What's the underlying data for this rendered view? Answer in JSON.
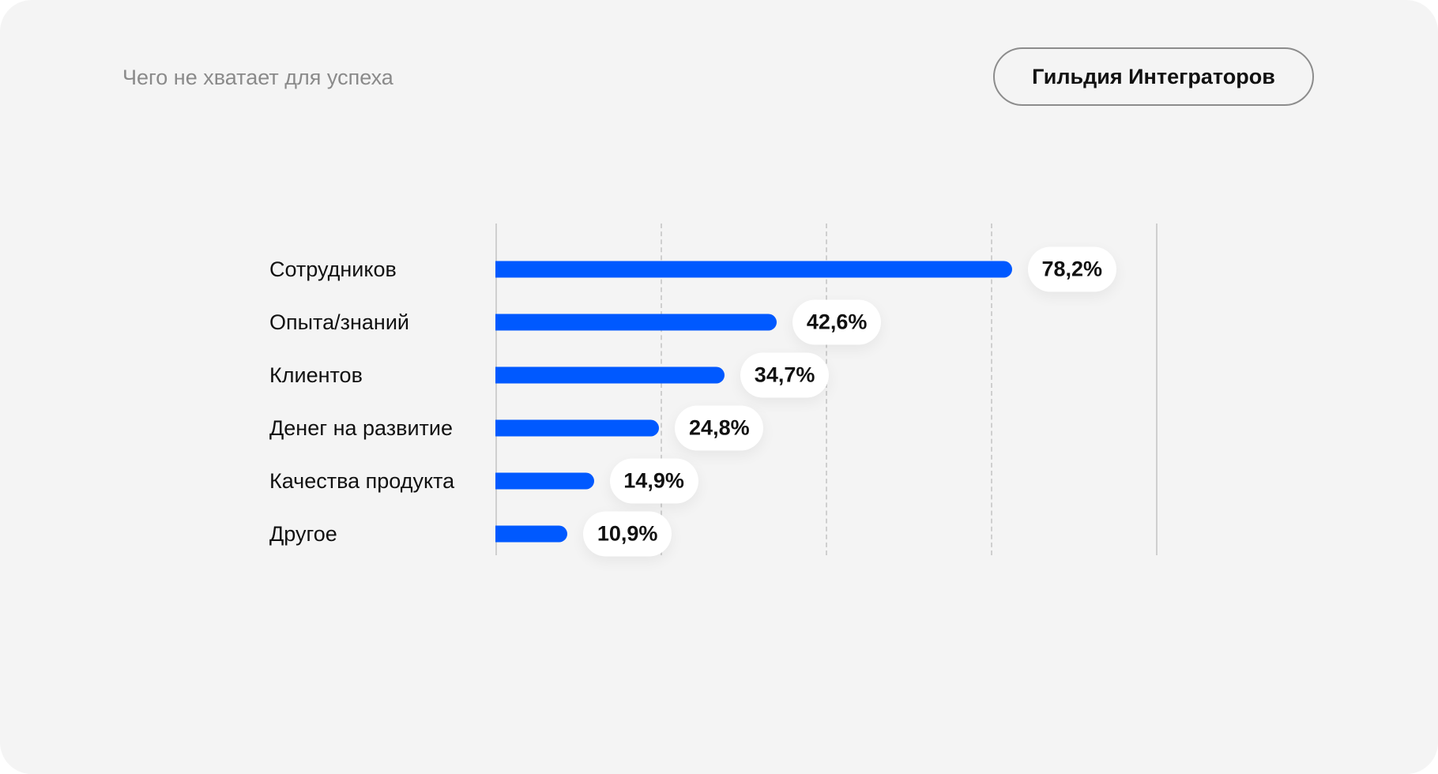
{
  "header": {
    "subtitle": "Чего не хватает для успеха",
    "brand": "Гильдия Интеграторов"
  },
  "colors": {
    "bar": "#0059ff",
    "background": "#f4f4f4",
    "grid": "#cfcfcf"
  },
  "chart_data": {
    "type": "bar",
    "orientation": "horizontal",
    "title": "Чего не хватает для успеха",
    "categories": [
      "Сотрудников",
      "Опыта/знаний",
      "Клиентов",
      "Денег на развитие",
      "Качества продукта",
      "Другое"
    ],
    "values": [
      78.2,
      42.6,
      34.7,
      24.8,
      14.9,
      10.9
    ],
    "value_labels": [
      "78,2%",
      "42,6%",
      "34,7%",
      "24,8%",
      "14,9%",
      "10,9%"
    ],
    "xlabel": "",
    "ylabel": "",
    "xlim": [
      0,
      100
    ],
    "gridlines": [
      0,
      25,
      50,
      75,
      100
    ],
    "grid": true,
    "legend": null,
    "units": "%"
  },
  "rows": [
    {
      "label": "Сотрудников",
      "value": "78,2%"
    },
    {
      "label": "Опыта/знаний",
      "value": "42,6%"
    },
    {
      "label": "Клиентов",
      "value": "34,7%"
    },
    {
      "label": "Денег на развитие",
      "value": "24,8%"
    },
    {
      "label": "Качества продукта",
      "value": "14,9%"
    },
    {
      "label": "Другое",
      "value": "10,9%"
    }
  ]
}
